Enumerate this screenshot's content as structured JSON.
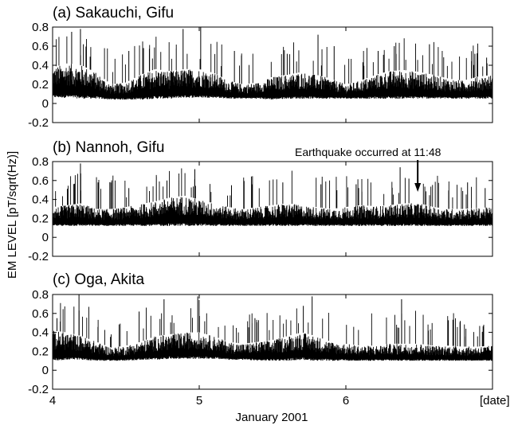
{
  "chart_data": [
    {
      "type": "line",
      "title": "(a) Sakauchi, Gifu",
      "xlim": [
        4,
        7
      ],
      "ylim": [
        -0.2,
        0.8
      ],
      "yticks": [
        "0.8",
        "0.6",
        "0.4",
        "0.2",
        "0",
        "-0.2"
      ],
      "series": [
        {
          "x": [
            4.0,
            4.1,
            4.2,
            4.3,
            4.4,
            4.5,
            4.6,
            4.7,
            4.8,
            4.9,
            5.0,
            5.1,
            5.2,
            5.3,
            5.4,
            5.5,
            5.6,
            5.7,
            5.8,
            5.9,
            6.0,
            6.1,
            6.2,
            6.3,
            6.4,
            6.5,
            6.6,
            6.7,
            6.8,
            6.9,
            7.0
          ],
          "y_low": [
            0.06,
            0.06,
            0.05,
            0.05,
            0.04,
            0.04,
            0.04,
            0.05,
            0.05,
            0.06,
            0.06,
            0.06,
            0.05,
            0.05,
            0.05,
            0.04,
            0.05,
            0.05,
            0.05,
            0.05,
            0.05,
            0.05,
            0.05,
            0.05,
            0.05,
            0.05,
            0.05,
            0.05,
            0.05,
            0.05,
            0.05
          ],
          "y_high": [
            0.38,
            0.42,
            0.4,
            0.32,
            0.2,
            0.22,
            0.3,
            0.36,
            0.34,
            0.36,
            0.36,
            0.32,
            0.24,
            0.2,
            0.22,
            0.28,
            0.3,
            0.33,
            0.3,
            0.26,
            0.2,
            0.24,
            0.3,
            0.34,
            0.35,
            0.33,
            0.3,
            0.26,
            0.24,
            0.28,
            0.3
          ],
          "spikes": [
            [
              4.13,
              0.75
            ],
            [
              4.19,
              0.78
            ],
            [
              4.21,
              0.62
            ],
            [
              4.52,
              0.55
            ],
            [
              4.62,
              0.58
            ],
            [
              4.89,
              0.78
            ],
            [
              5.01,
              0.8
            ],
            [
              5.24,
              0.55
            ],
            [
              5.6,
              0.52
            ],
            [
              5.81,
              0.72
            ],
            [
              5.92,
              0.6
            ],
            [
              6.22,
              0.55
            ],
            [
              6.33,
              0.6
            ],
            [
              6.57,
              0.62
            ],
            [
              6.88,
              0.52
            ],
            [
              6.96,
              0.48
            ]
          ]
        }
      ]
    },
    {
      "type": "line",
      "title": "(b) Nannoh, Gifu",
      "xlim": [
        4,
        7
      ],
      "ylim": [
        -0.2,
        0.8
      ],
      "yticks": [
        "0.8",
        "0.6",
        "0.4",
        "0.2",
        "0",
        "-0.2"
      ],
      "annotation": {
        "text": "Earthquake occurred at 11:48",
        "x": 6.49
      },
      "series": [
        {
          "x": [
            4.0,
            4.1,
            4.2,
            4.3,
            4.4,
            4.5,
            4.6,
            4.7,
            4.8,
            4.9,
            5.0,
            5.1,
            5.2,
            5.3,
            5.4,
            5.5,
            5.6,
            5.7,
            5.8,
            5.9,
            6.0,
            6.1,
            6.2,
            6.3,
            6.4,
            6.5,
            6.6,
            6.7,
            6.8,
            6.9,
            7.0
          ],
          "y_low": [
            0.12,
            0.12,
            0.12,
            0.12,
            0.12,
            0.12,
            0.12,
            0.12,
            0.12,
            0.12,
            0.12,
            0.12,
            0.12,
            0.12,
            0.12,
            0.12,
            0.12,
            0.12,
            0.12,
            0.12,
            0.12,
            0.12,
            0.12,
            0.12,
            0.12,
            0.12,
            0.12,
            0.12,
            0.12,
            0.12,
            0.12
          ],
          "y_high": [
            0.32,
            0.34,
            0.36,
            0.3,
            0.3,
            0.32,
            0.35,
            0.38,
            0.42,
            0.44,
            0.4,
            0.36,
            0.32,
            0.3,
            0.32,
            0.34,
            0.36,
            0.34,
            0.32,
            0.3,
            0.32,
            0.34,
            0.33,
            0.34,
            0.36,
            0.36,
            0.32,
            0.3,
            0.3,
            0.31,
            0.32
          ],
          "spikes": [
            [
              4.19,
              0.78
            ],
            [
              4.31,
              0.58
            ],
            [
              4.52,
              0.52
            ],
            [
              4.78,
              0.6
            ],
            [
              4.97,
              0.72
            ],
            [
              5.22,
              0.55
            ],
            [
              5.57,
              0.58
            ],
            [
              5.83,
              0.56
            ],
            [
              6.07,
              0.56
            ],
            [
              6.37,
              0.74
            ],
            [
              6.43,
              0.62
            ],
            [
              6.83,
              0.58
            ],
            [
              6.95,
              0.52
            ]
          ]
        }
      ]
    },
    {
      "type": "line",
      "title": "(c) Oga, Akita",
      "xlim": [
        4,
        7
      ],
      "ylim": [
        -0.2,
        0.8
      ],
      "yticks": [
        "0.8",
        "0.6",
        "0.4",
        "0.2",
        "0",
        "-0.2"
      ],
      "xticks": [
        4,
        5,
        6
      ],
      "xtick_labels": [
        "4",
        "5",
        "6"
      ],
      "xlabel": "January 2001",
      "xunit_label": "[date]",
      "series": [
        {
          "x": [
            4.0,
            4.1,
            4.2,
            4.3,
            4.4,
            4.5,
            4.6,
            4.7,
            4.8,
            4.9,
            5.0,
            5.1,
            5.2,
            5.3,
            5.4,
            5.5,
            5.6,
            5.7,
            5.8,
            5.9,
            6.0,
            6.1,
            6.2,
            6.3,
            6.4,
            6.5,
            6.6,
            6.7,
            6.8,
            6.9,
            7.0
          ],
          "y_low": [
            0.1,
            0.11,
            0.11,
            0.1,
            0.1,
            0.1,
            0.11,
            0.11,
            0.12,
            0.12,
            0.12,
            0.12,
            0.11,
            0.11,
            0.1,
            0.1,
            0.1,
            0.11,
            0.1,
            0.1,
            0.1,
            0.1,
            0.1,
            0.1,
            0.1,
            0.1,
            0.1,
            0.1,
            0.1,
            0.1,
            0.1
          ],
          "y_high": [
            0.42,
            0.4,
            0.36,
            0.3,
            0.24,
            0.26,
            0.3,
            0.36,
            0.38,
            0.4,
            0.4,
            0.36,
            0.3,
            0.28,
            0.3,
            0.32,
            0.36,
            0.4,
            0.36,
            0.3,
            0.28,
            0.26,
            0.26,
            0.28,
            0.28,
            0.28,
            0.26,
            0.26,
            0.25,
            0.25,
            0.26
          ],
          "spikes": [
            [
              4.03,
              0.55
            ],
            [
              4.18,
              0.8
            ],
            [
              4.59,
              0.62
            ],
            [
              4.76,
              0.75
            ],
            [
              4.99,
              0.78
            ],
            [
              5.38,
              0.55
            ],
            [
              5.71,
              0.68
            ],
            [
              5.77,
              0.78
            ],
            [
              6.38,
              0.75
            ],
            [
              6.78,
              0.52
            ],
            [
              6.94,
              0.48
            ]
          ]
        }
      ]
    }
  ],
  "shared": {
    "ylabel": "EM LEVEL  [pT/sqrt(Hz)]"
  }
}
